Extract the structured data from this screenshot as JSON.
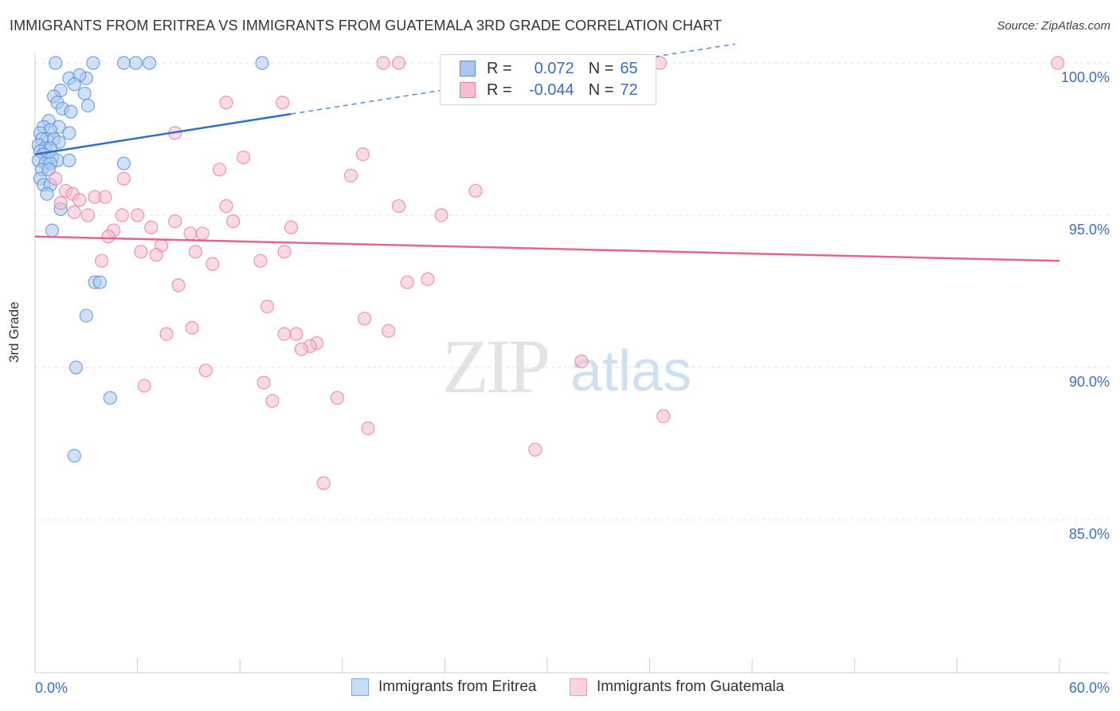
{
  "title": "IMMIGRANTS FROM ERITREA VS IMMIGRANTS FROM GUATEMALA 3RD GRADE CORRELATION CHART",
  "source": "Source: ZipAtlas.com",
  "watermark": {
    "zip": "ZIP",
    "atlas": "atlas"
  },
  "legend": {
    "r_label": "R =",
    "n_label": "N =",
    "items": [
      {
        "name": "Immigrants from Eritrea",
        "r": "0.072",
        "n": "65",
        "fill": "#a9c8f0",
        "stroke": "#5b8fd6"
      },
      {
        "name": "Immigrants from Guatemala",
        "r": "-0.044",
        "n": "72",
        "fill": "#f7bcd0",
        "stroke": "#e47fa3"
      }
    ]
  },
  "chart_data": {
    "type": "scatter",
    "title": "IMMIGRANTS FROM ERITREA VS IMMIGRANTS FROM GUATEMALA 3RD GRADE CORRELATION CHART",
    "xlabel": "",
    "ylabel": "3rd Grade",
    "xlim": [
      0,
      60
    ],
    "ylim": [
      80.5,
      100.9
    ],
    "x_tick_labels": [
      "0.0%",
      "60.0%"
    ],
    "y_ticks": [
      85,
      90,
      95,
      100
    ],
    "y_tick_labels": [
      "85.0%",
      "90.0%",
      "95.0%",
      "100.0%"
    ],
    "grid": true,
    "legend_position": "top-center",
    "series": [
      {
        "name": "Immigrants from Eritrea",
        "color": "#5b8fd6",
        "fill": "#a9c8f0",
        "trend": {
          "x": [
            0,
            15.0,
            60
          ],
          "y": [
            97.0,
            98.4,
            102.3
          ],
          "solid_until": 15.0
        },
        "points": [
          [
            1.2,
            100
          ],
          [
            3.4,
            100
          ],
          [
            5.2,
            100
          ],
          [
            5.9,
            100
          ],
          [
            6.7,
            100
          ],
          [
            13.3,
            100
          ],
          [
            2.0,
            99.5
          ],
          [
            3.0,
            99.5
          ],
          [
            2.6,
            99.6
          ],
          [
            2.3,
            99.3
          ],
          [
            1.5,
            99.1
          ],
          [
            2.9,
            99.0
          ],
          [
            1.1,
            98.9
          ],
          [
            1.3,
            98.7
          ],
          [
            3.1,
            98.6
          ],
          [
            1.6,
            98.5
          ],
          [
            2.1,
            98.4
          ],
          [
            0.8,
            98.1
          ],
          [
            0.5,
            97.9
          ],
          [
            1.4,
            97.9
          ],
          [
            0.9,
            97.8
          ],
          [
            2.0,
            97.7
          ],
          [
            0.3,
            97.7
          ],
          [
            0.7,
            97.5
          ],
          [
            1.1,
            97.5
          ],
          [
            1.4,
            97.4
          ],
          [
            0.4,
            97.5
          ],
          [
            0.2,
            97.3
          ],
          [
            0.6,
            97.2
          ],
          [
            0.9,
            97.2
          ],
          [
            0.3,
            97.1
          ],
          [
            0.5,
            97.0
          ],
          [
            1.0,
            96.9
          ],
          [
            1.3,
            96.8
          ],
          [
            2.0,
            96.8
          ],
          [
            0.2,
            96.8
          ],
          [
            0.6,
            96.7
          ],
          [
            0.9,
            96.7
          ],
          [
            0.4,
            96.5
          ],
          [
            0.8,
            96.5
          ],
          [
            5.2,
            96.7
          ],
          [
            0.3,
            96.2
          ],
          [
            0.5,
            96.0
          ],
          [
            0.9,
            96.0
          ],
          [
            0.7,
            95.7
          ],
          [
            1.5,
            95.2
          ],
          [
            1.0,
            94.5
          ],
          [
            3.5,
            92.8
          ],
          [
            3.8,
            92.8
          ],
          [
            3.0,
            91.7
          ],
          [
            2.4,
            90.0
          ],
          [
            4.4,
            89.0
          ],
          [
            2.3,
            87.1
          ]
        ]
      },
      {
        "name": "Immigrants from Guatemala",
        "color": "#e47fa3",
        "fill": "#f7bcd0",
        "trend": {
          "x": [
            0,
            60
          ],
          "y": [
            94.3,
            93.5
          ]
        },
        "points": [
          [
            20.4,
            100
          ],
          [
            21.3,
            100
          ],
          [
            33.6,
            100
          ],
          [
            36.6,
            100
          ],
          [
            59.9,
            100
          ],
          [
            11.2,
            98.7
          ],
          [
            14.5,
            98.7
          ],
          [
            8.2,
            97.7
          ],
          [
            19.2,
            97.0
          ],
          [
            12.2,
            96.9
          ],
          [
            10.8,
            96.5
          ],
          [
            18.5,
            96.3
          ],
          [
            5.2,
            96.2
          ],
          [
            1.2,
            96.2
          ],
          [
            25.8,
            95.8
          ],
          [
            1.8,
            95.8
          ],
          [
            2.2,
            95.7
          ],
          [
            3.5,
            95.6
          ],
          [
            4.1,
            95.6
          ],
          [
            2.6,
            95.5
          ],
          [
            1.5,
            95.4
          ],
          [
            11.2,
            95.3
          ],
          [
            21.3,
            95.3
          ],
          [
            2.3,
            95.1
          ],
          [
            3.1,
            95.0
          ],
          [
            5.1,
            95.0
          ],
          [
            23.8,
            95.0
          ],
          [
            6.0,
            95.0
          ],
          [
            8.2,
            94.8
          ],
          [
            11.6,
            94.8
          ],
          [
            6.8,
            94.6
          ],
          [
            15.0,
            94.6
          ],
          [
            4.6,
            94.5
          ],
          [
            9.1,
            94.4
          ],
          [
            9.8,
            94.4
          ],
          [
            4.3,
            94.3
          ],
          [
            7.4,
            94.0
          ],
          [
            6.2,
            93.8
          ],
          [
            9.4,
            93.8
          ],
          [
            14.6,
            93.8
          ],
          [
            7.1,
            93.7
          ],
          [
            3.9,
            93.5
          ],
          [
            13.2,
            93.5
          ],
          [
            10.4,
            93.4
          ],
          [
            23.0,
            92.9
          ],
          [
            21.8,
            92.8
          ],
          [
            8.4,
            92.7
          ],
          [
            13.6,
            92.0
          ],
          [
            19.3,
            91.6
          ],
          [
            9.2,
            91.3
          ],
          [
            20.7,
            91.2
          ],
          [
            7.7,
            91.1
          ],
          [
            14.6,
            91.1
          ],
          [
            15.3,
            91.1
          ],
          [
            16.5,
            90.8
          ],
          [
            16.1,
            90.7
          ],
          [
            15.6,
            90.6
          ],
          [
            32.0,
            90.2
          ],
          [
            10.0,
            89.9
          ],
          [
            13.4,
            89.5
          ],
          [
            6.4,
            89.4
          ],
          [
            17.7,
            89.0
          ],
          [
            13.9,
            88.9
          ],
          [
            36.8,
            88.4
          ],
          [
            19.5,
            88.0
          ],
          [
            29.3,
            87.3
          ],
          [
            16.9,
            86.2
          ]
        ]
      }
    ]
  }
}
